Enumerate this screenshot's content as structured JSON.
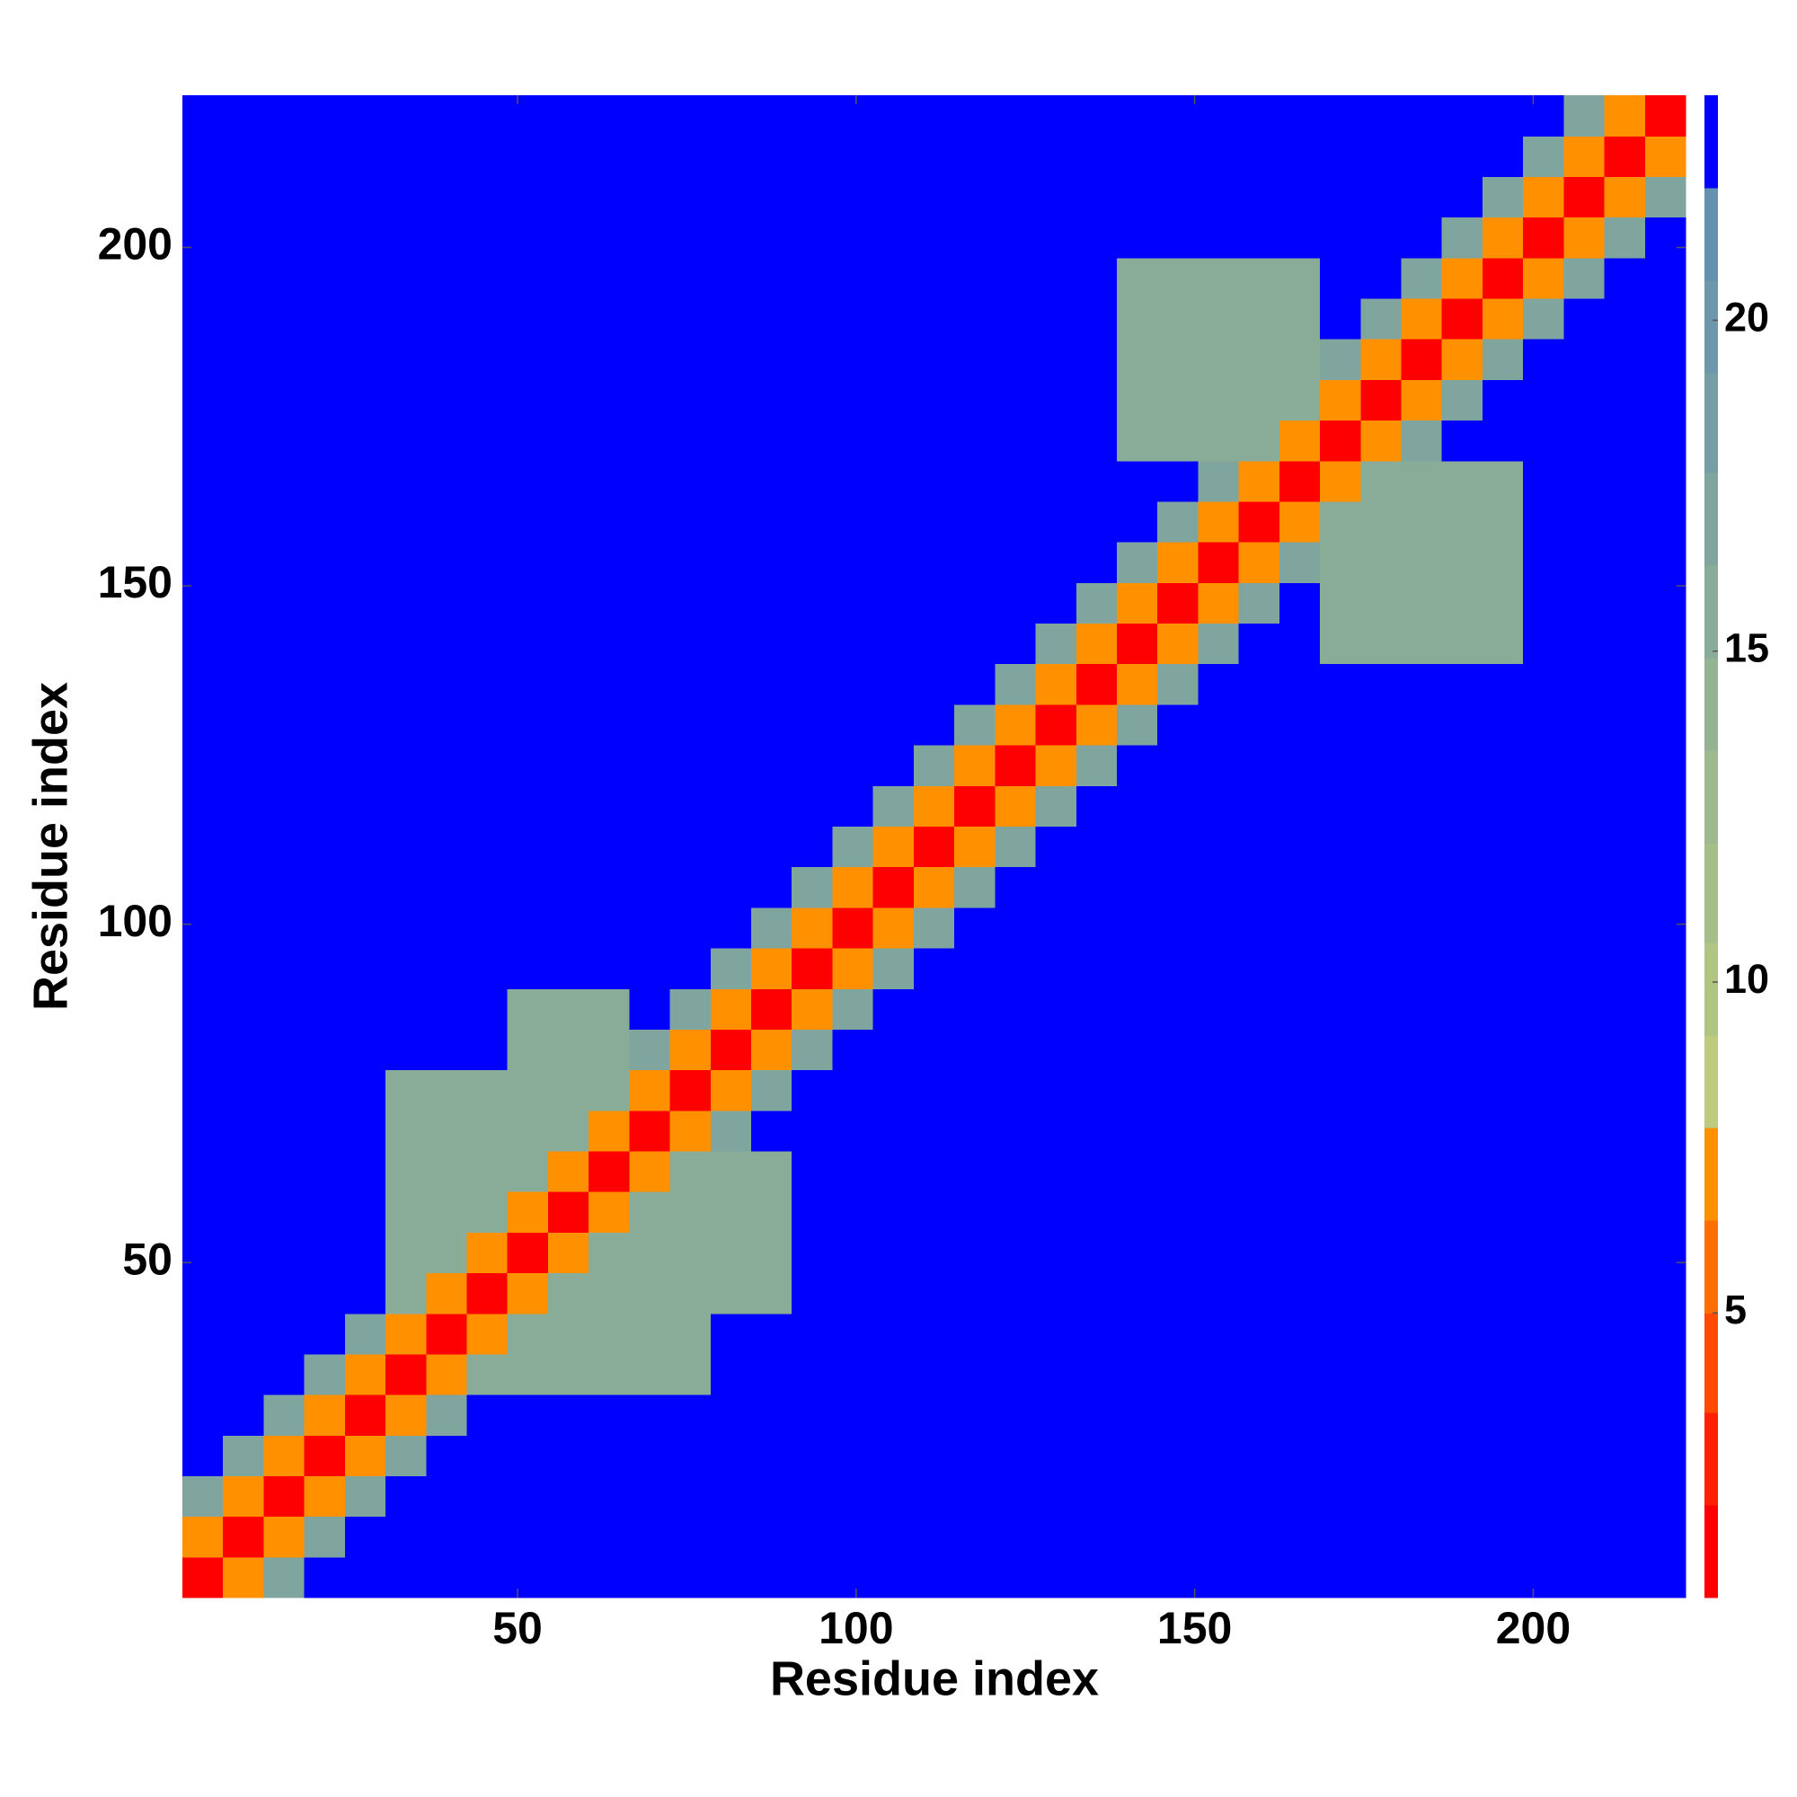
{
  "chart_data": {
    "type": "heatmap",
    "xlabel": "Residue index",
    "ylabel": "Residue index",
    "xlim": [
      0.5,
      222.5
    ],
    "ylim": [
      0.5,
      222.5
    ],
    "xticks": [
      50,
      100,
      150,
      200
    ],
    "yticks": [
      50,
      100,
      150,
      200
    ],
    "x": [
      3.5,
      9.5,
      15.5,
      21.5,
      27.5,
      33.5,
      39.5,
      45.5,
      51.5,
      57.5,
      63.5,
      69.5,
      75.5,
      81.5,
      87.5,
      93.5,
      99.5,
      105.5,
      111.5,
      117.5,
      123.5,
      129.5,
      135.5,
      141.5,
      147.5,
      153.5,
      159.5,
      165.5,
      171.5,
      177.5,
      183.5,
      189.5,
      195.5,
      201.5,
      207.5,
      213.5,
      219.5
    ],
    "y": [
      3.5,
      9.5,
      15.5,
      21.5,
      27.5,
      33.5,
      39.5,
      45.5,
      51.5,
      57.5,
      63.5,
      69.5,
      75.5,
      81.5,
      87.5,
      93.5,
      99.5,
      105.5,
      111.5,
      117.5,
      123.5,
      129.5,
      135.5,
      141.5,
      147.5,
      153.5,
      159.5,
      165.5,
      171.5,
      177.5,
      183.5,
      189.5,
      195.5,
      201.5,
      207.5,
      213.5,
      219.5
    ],
    "z": [
      [
        2,
        7,
        17,
        23,
        23,
        23,
        23,
        23,
        23,
        23,
        23,
        23,
        23,
        23,
        23,
        23,
        23,
        23,
        23,
        23,
        23,
        23,
        23,
        23,
        23,
        23,
        23,
        23,
        23,
        23,
        23,
        23,
        23,
        23,
        23,
        23,
        23
      ],
      [
        7,
        2,
        7,
        17,
        23,
        23,
        23,
        23,
        23,
        23,
        23,
        23,
        23,
        23,
        23,
        23,
        23,
        23,
        23,
        23,
        23,
        23,
        23,
        23,
        23,
        23,
        23,
        23,
        23,
        23,
        23,
        23,
        23,
        23,
        23,
        23,
        23
      ],
      [
        17,
        7,
        2,
        7,
        17,
        23,
        23,
        23,
        23,
        23,
        23,
        23,
        23,
        23,
        23,
        23,
        23,
        23,
        23,
        23,
        23,
        23,
        23,
        23,
        23,
        23,
        23,
        23,
        23,
        23,
        23,
        23,
        23,
        23,
        23,
        23,
        23
      ],
      [
        23,
        17,
        7,
        2,
        7,
        17,
        23,
        23,
        23,
        23,
        23,
        23,
        23,
        23,
        23,
        23,
        23,
        23,
        23,
        23,
        23,
        23,
        23,
        23,
        23,
        23,
        23,
        23,
        23,
        23,
        23,
        23,
        23,
        23,
        23,
        23,
        23
      ],
      [
        23,
        23,
        17,
        7,
        2,
        7,
        17,
        23,
        23,
        23,
        23,
        23,
        23,
        23,
        23,
        23,
        23,
        23,
        23,
        23,
        23,
        23,
        23,
        23,
        23,
        23,
        23,
        23,
        23,
        23,
        23,
        23,
        23,
        23,
        23,
        23,
        23
      ],
      [
        23,
        23,
        23,
        17,
        7,
        2,
        7,
        15,
        15,
        15,
        15,
        15,
        15,
        23,
        23,
        23,
        23,
        23,
        23,
        23,
        23,
        23,
        23,
        23,
        23,
        23,
        23,
        23,
        23,
        23,
        23,
        23,
        23,
        23,
        23,
        23,
        23
      ],
      [
        23,
        23,
        23,
        23,
        17,
        7,
        2,
        7,
        15,
        15,
        15,
        15,
        15,
        23,
        23,
        23,
        23,
        23,
        23,
        23,
        23,
        23,
        23,
        23,
        23,
        23,
        23,
        23,
        23,
        23,
        23,
        23,
        23,
        23,
        23,
        23,
        23
      ],
      [
        23,
        23,
        23,
        23,
        23,
        15,
        7,
        2,
        7,
        15,
        15,
        15,
        15,
        16,
        16,
        23,
        23,
        23,
        23,
        23,
        23,
        23,
        23,
        23,
        23,
        23,
        23,
        23,
        23,
        23,
        23,
        23,
        23,
        23,
        23,
        23,
        23
      ],
      [
        23,
        23,
        23,
        23,
        23,
        15,
        15,
        7,
        2,
        7,
        15,
        15,
        15,
        16,
        16,
        23,
        23,
        23,
        23,
        23,
        23,
        23,
        23,
        23,
        23,
        23,
        23,
        23,
        23,
        23,
        23,
        23,
        23,
        23,
        23,
        23,
        23
      ],
      [
        23,
        23,
        23,
        23,
        23,
        15,
        15,
        15,
        7,
        2,
        7,
        15,
        15,
        16,
        16,
        23,
        23,
        23,
        23,
        23,
        23,
        23,
        23,
        23,
        23,
        23,
        23,
        23,
        23,
        23,
        23,
        23,
        23,
        23,
        23,
        23,
        23
      ],
      [
        23,
        23,
        23,
        23,
        23,
        15,
        15,
        15,
        15,
        7,
        2,
        7,
        15,
        16,
        16,
        23,
        23,
        23,
        23,
        23,
        23,
        23,
        23,
        23,
        23,
        23,
        23,
        23,
        23,
        23,
        23,
        23,
        23,
        23,
        23,
        23,
        23
      ],
      [
        23,
        23,
        23,
        23,
        23,
        15,
        15,
        15,
        15,
        15,
        7,
        2,
        7,
        17,
        23,
        23,
        23,
        23,
        23,
        23,
        23,
        23,
        23,
        23,
        23,
        23,
        23,
        23,
        23,
        23,
        23,
        23,
        23,
        23,
        23,
        23,
        23
      ],
      [
        23,
        23,
        23,
        23,
        23,
        15,
        15,
        15,
        15,
        15,
        15,
        7,
        2,
        7,
        17,
        23,
        23,
        23,
        23,
        23,
        23,
        23,
        23,
        23,
        23,
        23,
        23,
        23,
        23,
        23,
        23,
        23,
        23,
        23,
        23,
        23,
        23
      ],
      [
        23,
        23,
        23,
        23,
        23,
        23,
        23,
        23,
        16,
        16,
        16,
        17,
        7,
        2,
        7,
        17,
        23,
        23,
        23,
        23,
        23,
        23,
        23,
        23,
        23,
        23,
        23,
        23,
        23,
        23,
        23,
        23,
        23,
        23,
        23,
        23,
        23
      ],
      [
        23,
        23,
        23,
        23,
        23,
        23,
        23,
        23,
        16,
        16,
        16,
        23,
        17,
        7,
        2,
        7,
        17,
        23,
        23,
        23,
        23,
        23,
        23,
        23,
        23,
        23,
        23,
        23,
        23,
        23,
        23,
        23,
        23,
        23,
        23,
        23,
        23
      ],
      [
        23,
        23,
        23,
        23,
        23,
        23,
        23,
        23,
        23,
        23,
        23,
        23,
        23,
        17,
        7,
        2,
        7,
        17,
        23,
        23,
        23,
        23,
        23,
        23,
        23,
        23,
        23,
        23,
        23,
        23,
        23,
        23,
        23,
        23,
        23,
        23,
        23
      ],
      [
        23,
        23,
        23,
        23,
        23,
        23,
        23,
        23,
        23,
        23,
        23,
        23,
        23,
        23,
        17,
        7,
        2,
        7,
        17,
        23,
        23,
        23,
        23,
        23,
        23,
        23,
        23,
        23,
        23,
        23,
        23,
        23,
        23,
        23,
        23,
        23,
        23
      ],
      [
        23,
        23,
        23,
        23,
        23,
        23,
        23,
        23,
        23,
        23,
        23,
        23,
        23,
        23,
        23,
        17,
        7,
        2,
        7,
        17,
        23,
        23,
        23,
        23,
        23,
        23,
        23,
        23,
        23,
        23,
        23,
        23,
        23,
        23,
        23,
        23,
        23
      ],
      [
        23,
        23,
        23,
        23,
        23,
        23,
        23,
        23,
        23,
        23,
        23,
        23,
        23,
        23,
        23,
        23,
        17,
        7,
        2,
        7,
        17,
        23,
        23,
        23,
        23,
        23,
        23,
        23,
        23,
        23,
        23,
        23,
        23,
        23,
        23,
        23,
        23
      ],
      [
        23,
        23,
        23,
        23,
        23,
        23,
        23,
        23,
        23,
        23,
        23,
        23,
        23,
        23,
        23,
        23,
        23,
        17,
        7,
        2,
        7,
        17,
        23,
        23,
        23,
        23,
        23,
        23,
        23,
        23,
        23,
        23,
        23,
        23,
        23,
        23,
        23
      ],
      [
        23,
        23,
        23,
        23,
        23,
        23,
        23,
        23,
        23,
        23,
        23,
        23,
        23,
        23,
        23,
        23,
        23,
        23,
        17,
        7,
        2,
        7,
        17,
        23,
        23,
        23,
        23,
        23,
        23,
        23,
        23,
        23,
        23,
        23,
        23,
        23,
        23
      ],
      [
        23,
        23,
        23,
        23,
        23,
        23,
        23,
        23,
        23,
        23,
        23,
        23,
        23,
        23,
        23,
        23,
        23,
        23,
        23,
        17,
        7,
        2,
        7,
        17,
        23,
        23,
        23,
        23,
        23,
        23,
        23,
        23,
        23,
        23,
        23,
        23,
        23
      ],
      [
        23,
        23,
        23,
        23,
        23,
        23,
        23,
        23,
        23,
        23,
        23,
        23,
        23,
        23,
        23,
        23,
        23,
        23,
        23,
        23,
        17,
        7,
        2,
        7,
        17,
        23,
        23,
        23,
        23,
        23,
        23,
        23,
        23,
        23,
        23,
        23,
        23
      ],
      [
        23,
        23,
        23,
        23,
        23,
        23,
        23,
        23,
        23,
        23,
        23,
        23,
        23,
        23,
        23,
        23,
        23,
        23,
        23,
        23,
        23,
        17,
        7,
        2,
        7,
        17,
        23,
        23,
        16,
        16,
        16,
        16,
        16,
        23,
        23,
        23,
        23
      ],
      [
        23,
        23,
        23,
        23,
        23,
        23,
        23,
        23,
        23,
        23,
        23,
        23,
        23,
        23,
        23,
        23,
        23,
        23,
        23,
        23,
        23,
        23,
        17,
        7,
        2,
        7,
        17,
        23,
        16,
        16,
        16,
        16,
        16,
        23,
        23,
        23,
        23
      ],
      [
        23,
        23,
        23,
        23,
        23,
        23,
        23,
        23,
        23,
        23,
        23,
        23,
        23,
        23,
        23,
        23,
        23,
        23,
        23,
        23,
        23,
        23,
        23,
        17,
        7,
        2,
        7,
        17,
        16,
        16,
        16,
        16,
        16,
        23,
        23,
        23,
        23
      ],
      [
        23,
        23,
        23,
        23,
        23,
        23,
        23,
        23,
        23,
        23,
        23,
        23,
        23,
        23,
        23,
        23,
        23,
        23,
        23,
        23,
        23,
        23,
        23,
        23,
        17,
        7,
        2,
        7,
        16,
        16,
        16,
        16,
        16,
        23,
        23,
        23,
        23
      ],
      [
        23,
        23,
        23,
        23,
        23,
        23,
        23,
        23,
        23,
        23,
        23,
        23,
        23,
        23,
        23,
        23,
        23,
        23,
        23,
        23,
        23,
        23,
        23,
        23,
        23,
        17,
        7,
        2,
        7,
        16,
        16,
        16,
        16,
        23,
        23,
        23,
        23
      ],
      [
        23,
        23,
        23,
        23,
        23,
        23,
        23,
        23,
        23,
        23,
        23,
        23,
        23,
        23,
        23,
        23,
        23,
        23,
        23,
        23,
        23,
        23,
        23,
        16,
        16,
        16,
        16,
        7,
        2,
        7,
        17,
        23,
        23,
        23,
        23,
        23,
        23
      ],
      [
        23,
        23,
        23,
        23,
        23,
        23,
        23,
        23,
        23,
        23,
        23,
        23,
        23,
        23,
        23,
        23,
        23,
        23,
        23,
        23,
        23,
        23,
        23,
        16,
        16,
        16,
        16,
        16,
        7,
        2,
        7,
        17,
        23,
        23,
        23,
        23,
        23
      ],
      [
        23,
        23,
        23,
        23,
        23,
        23,
        23,
        23,
        23,
        23,
        23,
        23,
        23,
        23,
        23,
        23,
        23,
        23,
        23,
        23,
        23,
        23,
        23,
        16,
        16,
        16,
        16,
        16,
        17,
        7,
        2,
        7,
        17,
        23,
        23,
        23,
        23
      ],
      [
        23,
        23,
        23,
        23,
        23,
        23,
        23,
        23,
        23,
        23,
        23,
        23,
        23,
        23,
        23,
        23,
        23,
        23,
        23,
        23,
        23,
        23,
        23,
        16,
        16,
        16,
        16,
        16,
        23,
        17,
        7,
        2,
        7,
        17,
        23,
        23,
        23
      ],
      [
        23,
        23,
        23,
        23,
        23,
        23,
        23,
        23,
        23,
        23,
        23,
        23,
        23,
        23,
        23,
        23,
        23,
        23,
        23,
        23,
        23,
        23,
        23,
        16,
        16,
        16,
        16,
        16,
        23,
        23,
        17,
        7,
        2,
        7,
        17,
        23,
        23
      ],
      [
        23,
        23,
        23,
        23,
        23,
        23,
        23,
        23,
        23,
        23,
        23,
        23,
        23,
        23,
        23,
        23,
        23,
        23,
        23,
        23,
        23,
        23,
        23,
        23,
        23,
        23,
        23,
        23,
        23,
        23,
        23,
        17,
        7,
        2,
        7,
        17,
        23
      ],
      [
        23,
        23,
        23,
        23,
        23,
        23,
        23,
        23,
        23,
        23,
        23,
        23,
        23,
        23,
        23,
        23,
        23,
        23,
        23,
        23,
        23,
        23,
        23,
        23,
        23,
        23,
        23,
        23,
        23,
        23,
        23,
        23,
        17,
        7,
        2,
        7,
        17
      ],
      [
        23,
        23,
        23,
        23,
        23,
        23,
        23,
        23,
        23,
        23,
        23,
        23,
        23,
        23,
        23,
        23,
        23,
        23,
        23,
        23,
        23,
        23,
        23,
        23,
        23,
        23,
        23,
        23,
        23,
        23,
        23,
        23,
        23,
        17,
        7,
        2,
        7
      ],
      [
        23,
        23,
        23,
        23,
        23,
        23,
        23,
        23,
        23,
        23,
        23,
        23,
        23,
        23,
        23,
        23,
        23,
        23,
        23,
        23,
        23,
        23,
        23,
        23,
        23,
        23,
        23,
        23,
        23,
        23,
        23,
        23,
        23,
        23,
        17,
        7,
        2
      ]
    ],
    "colorbar": {
      "lim": [
        0.7,
        23.4
      ],
      "ticks": [
        5,
        10,
        15,
        20
      ],
      "levels": [
        0.7,
        2.1,
        3.5,
        5.0,
        6.4,
        7.8,
        9.2,
        10.6,
        12.1,
        13.5,
        14.9,
        16.3,
        17.7,
        19.2,
        20.6,
        22.0,
        23.4
      ],
      "colors": [
        "#ff0000",
        "#ff2000",
        "#ff4a00",
        "#ff6e00",
        "#ff9000",
        "#bccb7e",
        "#b0c584",
        "#a6bf88",
        "#9db98d",
        "#93b392",
        "#89ac98",
        "#7fa59e",
        "#769ea5",
        "#6d97ab",
        "#6490b2",
        "#0000ff"
      ]
    }
  }
}
